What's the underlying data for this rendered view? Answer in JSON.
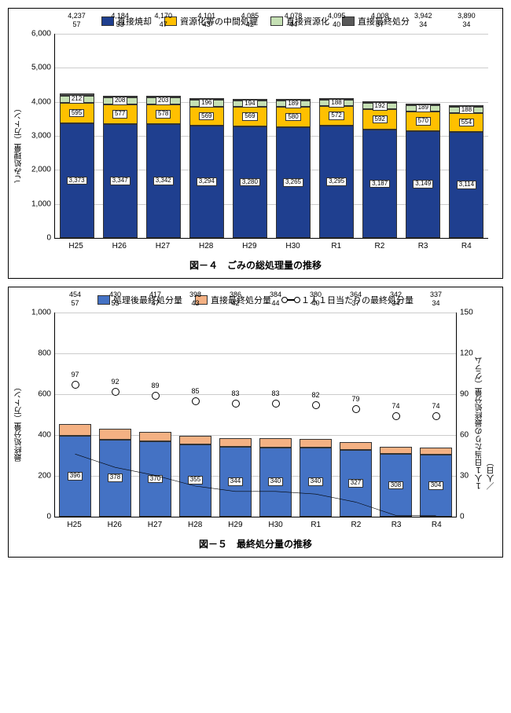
{
  "chart1": {
    "legend": [
      {
        "label": "直接焼却",
        "color": "#1f3f8f"
      },
      {
        "label": "資源化等の中間処理",
        "color": "#ffc000"
      },
      {
        "label": "直接資源化",
        "color": "#c5e0b4"
      },
      {
        "label": "直接最終処分",
        "color": "#595959"
      }
    ],
    "ylabel": "ごみ処理量（万トン）",
    "ymax": 6000,
    "ystep": 1000,
    "categories": [
      "H25",
      "H26",
      "H27",
      "H28",
      "H29",
      "H30",
      "R1",
      "R2",
      "R3",
      "R4"
    ],
    "totals": [
      4237,
      4184,
      4170,
      4101,
      4085,
      4078,
      4095,
      4008,
      3942,
      3890
    ],
    "series": [
      {
        "name": "直接焼却",
        "color": "#1f3f8f",
        "values": [
          3373,
          3347,
          3342,
          3294,
          3280,
          3265,
          3295,
          3187,
          3149,
          3114
        ]
      },
      {
        "name": "資源化等の中間処理",
        "color": "#ffc000",
        "values": [
          595,
          577,
          578,
          569,
          569,
          580,
          572,
          592,
          570,
          554
        ]
      },
      {
        "name": "直接資源化",
        "color": "#c5e0b4",
        "values": [
          212,
          208,
          203,
          196,
          194,
          189,
          188,
          192,
          189,
          188
        ]
      },
      {
        "name": "直接最終処分",
        "color": "#595959",
        "values": [
          57,
          53,
          47,
          43,
          42,
          44,
          40,
          37,
          34,
          34
        ]
      }
    ],
    "caption": "図－４　ごみの総処理量の推移"
  },
  "chart2": {
    "legend": [
      {
        "label": "処理後最終処分量",
        "color": "#4472c4",
        "type": "bar"
      },
      {
        "label": "直接最終処分量",
        "color": "#f4b183",
        "type": "bar"
      },
      {
        "label": "１人１日当たりの最終処分量",
        "type": "line"
      }
    ],
    "ylabel": "最終処分量（万トン）",
    "ylabel_right": "１人１日当たりの最終処分量（グラム／人日）",
    "ymax": 1000,
    "ystep": 200,
    "ymax_r": 150,
    "ystep_r": 30,
    "categories": [
      "H25",
      "H26",
      "H27",
      "H28",
      "H29",
      "H30",
      "R1",
      "R2",
      "R3",
      "R4"
    ],
    "totals": [
      454,
      430,
      417,
      398,
      386,
      384,
      380,
      364,
      342,
      337
    ],
    "series": [
      {
        "name": "処理後最終処分量",
        "color": "#4472c4",
        "values": [
          396,
          378,
          370,
          355,
          344,
          340,
          340,
          327,
          308,
          304
        ]
      },
      {
        "name": "直接最終処分量",
        "color": "#f4b183",
        "values": [
          57,
          53,
          47,
          43,
          42,
          44,
          40,
          37,
          34,
          34
        ]
      }
    ],
    "line": {
      "name": "１人１日当たりの最終処分量",
      "values": [
        97,
        92,
        89,
        85,
        83,
        83,
        82,
        79,
        74,
        74
      ]
    },
    "caption": "図－５　最終処分量の推移"
  }
}
